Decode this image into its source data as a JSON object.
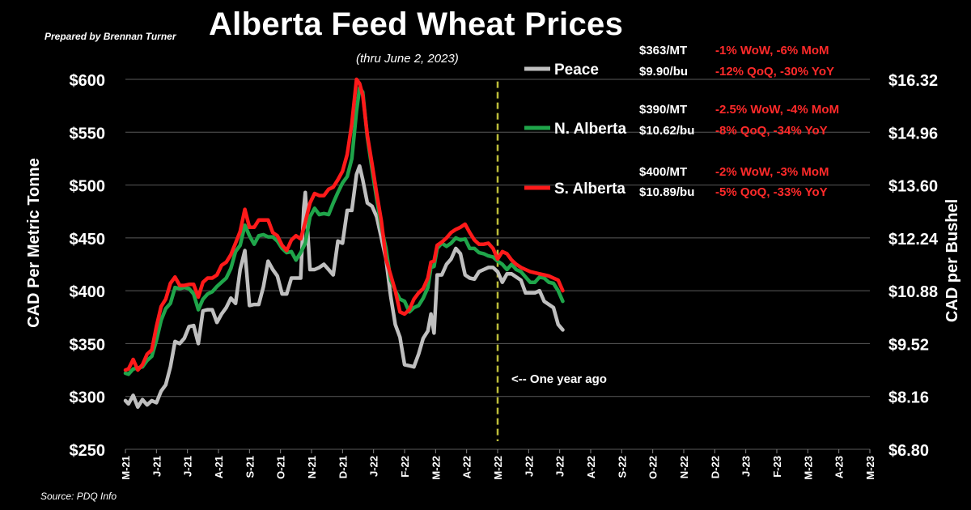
{
  "header": {
    "title": "Alberta Feed Wheat Prices",
    "subtitle": "(thru June 2, 2023)",
    "prepared_by": "Prepared by Brennan Turner",
    "source": "Source: PDQ Info"
  },
  "colors": {
    "peace": "#bfbfbf",
    "n_alberta": "#1fa54a",
    "s_alberta": "#ff1a1a",
    "background": "#000000",
    "marker_line": "#bcbc3a",
    "change_text": "#ff2a2a"
  },
  "annotations": {
    "peace": {
      "price_mt": "$363/MT",
      "change1": "-1% WoW, -6% MoM",
      "price_bu": "$9.90/bu",
      "change2": "-12% QoQ, -30% YoY"
    },
    "n_alberta": {
      "price_mt": "$390/MT",
      "change1": "-2.5% WoW, -4% MoM",
      "price_bu": "$10.62/bu",
      "change2": "-8% QoQ, -34% YoY"
    },
    "s_alberta": {
      "price_mt": "$400/MT",
      "change1": "-2% WoW, -3% MoM",
      "price_bu": "$10.89/bu",
      "change2": "-5% QoQ, -33% YoY"
    },
    "marker": "<-- One year ago"
  },
  "chart_data": {
    "type": "line",
    "title": "Alberta Feed Wheat Prices",
    "ylabel": "CAD Per Metric Tonne",
    "y2label": "CAD per Bushel",
    "ylim": [
      250,
      600
    ],
    "yticks": [
      "$600",
      "$550",
      "$500",
      "$450",
      "$400",
      "$350",
      "$300",
      "$250"
    ],
    "y2ticks": [
      "$16.32",
      "$14.96",
      "$13.60",
      "$12.24",
      "$10.88",
      "$9.52",
      "$8.16",
      "$6.80"
    ],
    "xtick_labels": [
      "M-21",
      "J-21",
      "J-21",
      "A-21",
      "S-21",
      "O-21",
      "N-21",
      "D-21",
      "J-22",
      "F-22",
      "M-22",
      "A-22",
      "M-22",
      "J-22",
      "J-22",
      "A-22",
      "S-22",
      "O-22",
      "N-22",
      "D-22",
      "J-23",
      "F-23",
      "M-23",
      "A-23",
      "M-23"
    ],
    "marker_index": 12,
    "grid": true,
    "legend": [
      "Peace",
      "N. Alberta",
      "S. Alberta"
    ],
    "series": [
      {
        "name": "Peace",
        "values": [
          [
            0,
            296
          ],
          [
            0.1,
            293
          ],
          [
            0.25,
            301
          ],
          [
            0.4,
            290
          ],
          [
            0.55,
            297
          ],
          [
            0.7,
            292
          ],
          [
            0.85,
            296
          ],
          [
            1,
            294
          ],
          [
            1.15,
            305
          ],
          [
            1.3,
            311
          ],
          [
            1.45,
            328
          ],
          [
            1.6,
            352
          ],
          [
            1.75,
            350
          ],
          [
            1.9,
            355
          ],
          [
            2.05,
            366
          ],
          [
            2.2,
            367
          ],
          [
            2.35,
            350
          ],
          [
            2.5,
            381
          ],
          [
            2.65,
            382
          ],
          [
            2.8,
            382
          ],
          [
            2.95,
            370
          ],
          [
            3.1,
            378
          ],
          [
            3.25,
            384
          ],
          [
            3.4,
            393
          ],
          [
            3.55,
            388
          ],
          [
            3.7,
            420
          ],
          [
            3.85,
            438
          ],
          [
            4,
            386
          ],
          [
            4.15,
            387
          ],
          [
            4.3,
            387
          ],
          [
            4.45,
            404
          ],
          [
            4.6,
            428
          ],
          [
            4.75,
            420
          ],
          [
            4.9,
            414
          ],
          [
            5.05,
            397
          ],
          [
            5.2,
            397
          ],
          [
            5.35,
            412
          ],
          [
            5.5,
            412
          ],
          [
            5.65,
            412
          ],
          [
            5.75,
            478
          ],
          [
            5.8,
            493
          ],
          [
            5.95,
            420
          ],
          [
            6.1,
            420
          ],
          [
            6.25,
            422
          ],
          [
            6.4,
            425
          ],
          [
            6.55,
            420
          ],
          [
            6.7,
            415
          ],
          [
            6.85,
            447
          ],
          [
            7,
            445
          ],
          [
            7.15,
            476
          ],
          [
            7.3,
            476
          ],
          [
            7.45,
            510
          ],
          [
            7.55,
            518
          ],
          [
            7.65,
            505
          ],
          [
            7.8,
            483
          ],
          [
            7.95,
            480
          ],
          [
            8.1,
            470
          ],
          [
            8.25,
            450
          ],
          [
            8.4,
            430
          ],
          [
            8.55,
            395
          ],
          [
            8.7,
            368
          ],
          [
            8.85,
            356
          ],
          [
            9,
            330
          ],
          [
            9.15,
            329
          ],
          [
            9.3,
            328
          ],
          [
            9.45,
            340
          ],
          [
            9.6,
            355
          ],
          [
            9.75,
            362
          ],
          [
            9.85,
            378
          ],
          [
            9.95,
            360
          ],
          [
            10.05,
            415
          ],
          [
            10.2,
            415
          ],
          [
            10.35,
            425
          ],
          [
            10.5,
            430
          ],
          [
            10.65,
            440
          ],
          [
            10.8,
            435
          ],
          [
            10.95,
            415
          ],
          [
            11.1,
            412
          ],
          [
            11.25,
            411
          ],
          [
            11.4,
            418
          ],
          [
            11.55,
            420
          ],
          [
            11.7,
            422
          ],
          [
            11.85,
            422
          ],
          [
            12,
            418
          ],
          [
            12.15,
            408
          ],
          [
            12.3,
            416
          ],
          [
            12.45,
            416
          ],
          [
            12.6,
            413
          ],
          [
            12.75,
            410
          ],
          [
            12.9,
            398
          ],
          [
            13.05,
            398
          ],
          [
            13.2,
            398
          ],
          [
            13.35,
            400
          ],
          [
            13.5,
            390
          ],
          [
            13.65,
            387
          ],
          [
            13.8,
            384
          ],
          [
            13.95,
            368
          ],
          [
            14.1,
            363
          ]
        ]
      },
      {
        "name": "N. Alberta",
        "values": [
          [
            0,
            322
          ],
          [
            0.1,
            321
          ],
          [
            0.25,
            326
          ],
          [
            0.4,
            327
          ],
          [
            0.55,
            328
          ],
          [
            0.7,
            334
          ],
          [
            0.85,
            338
          ],
          [
            1,
            353
          ],
          [
            1.15,
            372
          ],
          [
            1.3,
            383
          ],
          [
            1.45,
            388
          ],
          [
            1.6,
            403
          ],
          [
            1.75,
            402
          ],
          [
            1.9,
            403
          ],
          [
            2.05,
            402
          ],
          [
            2.2,
            397
          ],
          [
            2.35,
            382
          ],
          [
            2.5,
            392
          ],
          [
            2.65,
            397
          ],
          [
            2.8,
            399
          ],
          [
            2.95,
            404
          ],
          [
            3.1,
            408
          ],
          [
            3.25,
            412
          ],
          [
            3.4,
            421
          ],
          [
            3.55,
            437
          ],
          [
            3.7,
            443
          ],
          [
            3.85,
            462
          ],
          [
            4,
            452
          ],
          [
            4.15,
            444
          ],
          [
            4.3,
            452
          ],
          [
            4.45,
            453
          ],
          [
            4.6,
            451
          ],
          [
            4.75,
            451
          ],
          [
            4.9,
            447
          ],
          [
            5.05,
            440
          ],
          [
            5.2,
            436
          ],
          [
            5.35,
            437
          ],
          [
            5.5,
            429
          ],
          [
            5.65,
            436
          ],
          [
            5.8,
            445
          ],
          [
            5.95,
            470
          ],
          [
            6.1,
            478
          ],
          [
            6.25,
            472
          ],
          [
            6.4,
            473
          ],
          [
            6.55,
            472
          ],
          [
            6.7,
            483
          ],
          [
            6.85,
            493
          ],
          [
            7,
            502
          ],
          [
            7.15,
            508
          ],
          [
            7.3,
            525
          ],
          [
            7.45,
            570
          ],
          [
            7.55,
            592
          ],
          [
            7.65,
            588
          ],
          [
            7.8,
            545
          ],
          [
            7.95,
            515
          ],
          [
            8.1,
            487
          ],
          [
            8.25,
            460
          ],
          [
            8.4,
            440
          ],
          [
            8.55,
            410
          ],
          [
            8.7,
            400
          ],
          [
            8.85,
            392
          ],
          [
            9,
            390
          ],
          [
            9.15,
            380
          ],
          [
            9.3,
            384
          ],
          [
            9.45,
            386
          ],
          [
            9.6,
            393
          ],
          [
            9.75,
            403
          ],
          [
            9.85,
            422
          ],
          [
            9.95,
            423
          ],
          [
            10.05,
            440
          ],
          [
            10.2,
            445
          ],
          [
            10.35,
            442
          ],
          [
            10.5,
            445
          ],
          [
            10.65,
            450
          ],
          [
            10.8,
            448
          ],
          [
            10.95,
            449
          ],
          [
            11.1,
            440
          ],
          [
            11.25,
            440
          ],
          [
            11.4,
            436
          ],
          [
            11.55,
            435
          ],
          [
            11.7,
            433
          ],
          [
            11.85,
            432
          ],
          [
            12,
            428
          ],
          [
            12.15,
            425
          ],
          [
            12.3,
            420
          ],
          [
            12.45,
            425
          ],
          [
            12.6,
            420
          ],
          [
            12.75,
            418
          ],
          [
            12.9,
            413
          ],
          [
            13.05,
            408
          ],
          [
            13.2,
            408
          ],
          [
            13.35,
            413
          ],
          [
            13.5,
            412
          ],
          [
            13.65,
            408
          ],
          [
            13.8,
            407
          ],
          [
            13.95,
            400
          ],
          [
            14.1,
            390
          ]
        ]
      },
      {
        "name": "S. Alberta",
        "values": [
          [
            0,
            325
          ],
          [
            0.1,
            326
          ],
          [
            0.25,
            335
          ],
          [
            0.4,
            325
          ],
          [
            0.55,
            330
          ],
          [
            0.7,
            340
          ],
          [
            0.85,
            344
          ],
          [
            1,
            366
          ],
          [
            1.15,
            385
          ],
          [
            1.3,
            392
          ],
          [
            1.45,
            407
          ],
          [
            1.6,
            413
          ],
          [
            1.75,
            405
          ],
          [
            1.9,
            405
          ],
          [
            2.05,
            406
          ],
          [
            2.2,
            406
          ],
          [
            2.35,
            394
          ],
          [
            2.5,
            408
          ],
          [
            2.65,
            412
          ],
          [
            2.8,
            412
          ],
          [
            2.95,
            415
          ],
          [
            3.1,
            424
          ],
          [
            3.25,
            427
          ],
          [
            3.4,
            434
          ],
          [
            3.55,
            445
          ],
          [
            3.7,
            456
          ],
          [
            3.85,
            477
          ],
          [
            4,
            460
          ],
          [
            4.15,
            460
          ],
          [
            4.3,
            467
          ],
          [
            4.45,
            467
          ],
          [
            4.6,
            467
          ],
          [
            4.75,
            455
          ],
          [
            4.9,
            452
          ],
          [
            5.05,
            443
          ],
          [
            5.2,
            438
          ],
          [
            5.35,
            448
          ],
          [
            5.5,
            452
          ],
          [
            5.65,
            449
          ],
          [
            5.8,
            465
          ],
          [
            5.95,
            483
          ],
          [
            6.1,
            492
          ],
          [
            6.25,
            490
          ],
          [
            6.4,
            490
          ],
          [
            6.55,
            496
          ],
          [
            6.7,
            498
          ],
          [
            6.85,
            505
          ],
          [
            7,
            513
          ],
          [
            7.15,
            529
          ],
          [
            7.3,
            558
          ],
          [
            7.45,
            600
          ],
          [
            7.55,
            596
          ],
          [
            7.65,
            585
          ],
          [
            7.8,
            547
          ],
          [
            7.95,
            520
          ],
          [
            8.1,
            492
          ],
          [
            8.25,
            466
          ],
          [
            8.4,
            430
          ],
          [
            8.55,
            415
          ],
          [
            8.7,
            400
          ],
          [
            8.85,
            380
          ],
          [
            9,
            378
          ],
          [
            9.15,
            382
          ],
          [
            9.3,
            392
          ],
          [
            9.45,
            398
          ],
          [
            9.6,
            402
          ],
          [
            9.75,
            412
          ],
          [
            9.85,
            427
          ],
          [
            9.95,
            428
          ],
          [
            10.05,
            443
          ],
          [
            10.2,
            446
          ],
          [
            10.35,
            450
          ],
          [
            10.5,
            455
          ],
          [
            10.65,
            458
          ],
          [
            10.8,
            460
          ],
          [
            10.95,
            463
          ],
          [
            11.1,
            455
          ],
          [
            11.25,
            448
          ],
          [
            11.4,
            444
          ],
          [
            11.55,
            444
          ],
          [
            11.7,
            445
          ],
          [
            11.85,
            440
          ],
          [
            12,
            430
          ],
          [
            12.15,
            437
          ],
          [
            12.3,
            435
          ],
          [
            12.45,
            429
          ],
          [
            12.6,
            425
          ],
          [
            12.75,
            422
          ],
          [
            12.9,
            420
          ],
          [
            13.05,
            418
          ],
          [
            13.2,
            417
          ],
          [
            13.35,
            416
          ],
          [
            13.5,
            415
          ],
          [
            13.65,
            414
          ],
          [
            13.8,
            412
          ],
          [
            13.95,
            410
          ],
          [
            14.1,
            400
          ]
        ]
      }
    ]
  }
}
